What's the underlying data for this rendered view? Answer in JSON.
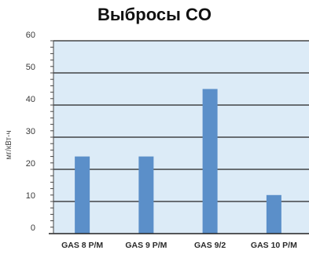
{
  "chart_data": {
    "type": "bar",
    "title": "Выбросы CO",
    "ylabel": "мг/кВт-ч",
    "xlabel": "",
    "categories": [
      "GAS 8 P/M",
      "GAS 9 P/M",
      "GAS 9/2",
      "GAS 10 P/M"
    ],
    "values": [
      24,
      24,
      45,
      12
    ],
    "ylim": [
      0,
      60
    ],
    "yticks": [
      0,
      10,
      20,
      30,
      40,
      50,
      60
    ],
    "grid": true,
    "legend": "none",
    "colors": {
      "bar": "#5b8fc9",
      "plot_background": "#dcebf7",
      "gridline": "#222222"
    }
  }
}
